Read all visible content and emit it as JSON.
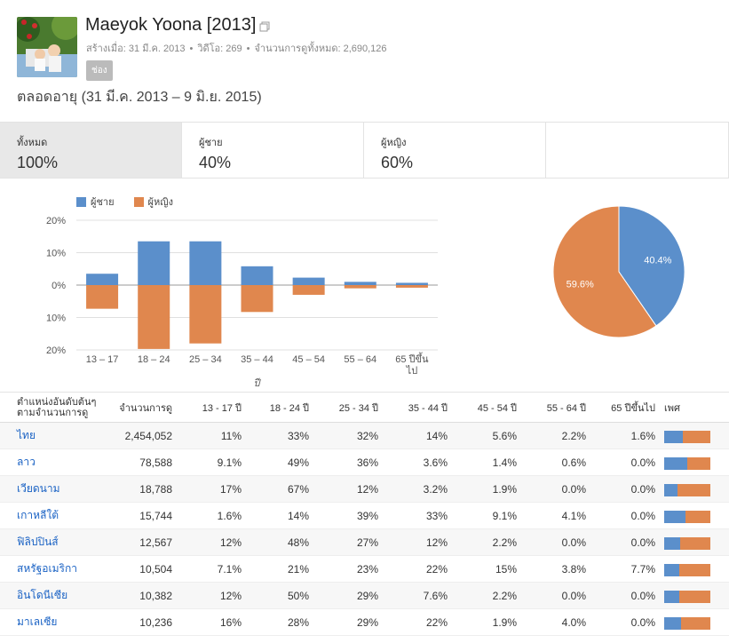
{
  "header": {
    "title": "Maeyok Yoona [2013]",
    "created": "สร้างเมื่อ: 31 มี.ค. 2013",
    "videos": "วิดีโอ: 269",
    "views_total": "จำนวนการดูทั้งหมด: 2,690,126",
    "channel_badge": "ช่อง",
    "date_range": "ตลอดอายุ (31 มี.ค. 2013 – 9 มิ.ย. 2015)"
  },
  "tabs": [
    {
      "label": "ทั้งหมด",
      "value": "100%"
    },
    {
      "label": "ผู้ชาย",
      "value": "40%"
    },
    {
      "label": "ผู้หญิง",
      "value": "60%"
    }
  ],
  "colors": {
    "male": "#5b8fcb",
    "female": "#e0874e"
  },
  "chart_data": [
    {
      "type": "bar",
      "categories": [
        "13 – 17",
        "18 – 24",
        "25 – 34",
        "35 – 44",
        "45 – 54",
        "55 – 64",
        "65 ปีขึ้นไป"
      ],
      "series": [
        {
          "name": "ผู้ชาย",
          "values": [
            3.5,
            13.5,
            13.5,
            5.8,
            2.3,
            1.0,
            0.7
          ]
        },
        {
          "name": "ผู้หญิง",
          "values": [
            7.3,
            19.7,
            18.0,
            8.3,
            3.0,
            1.0,
            0.8
          ]
        }
      ],
      "ytick_labels": [
        "20%",
        "10%",
        "0%",
        "10%",
        "20%"
      ],
      "xlabel": "ปี",
      "ylim": [
        -20,
        20
      ],
      "grid": true,
      "legend": "top-left"
    },
    {
      "type": "pie",
      "labels": [
        "ผู้ชาย",
        "ผู้หญิง"
      ],
      "values": [
        40.4,
        59.6
      ],
      "slice_labels": [
        "40.4%",
        "59.6%"
      ]
    }
  ],
  "table": {
    "headers": [
      "ตำแหน่งอันดับต้นๆ ตามจำนวนการดู",
      "จำนวนการดู",
      "13 - 17 ปี",
      "18 - 24 ปี",
      "25 - 34 ปี",
      "35 - 44 ปี",
      "45 - 54 ปี",
      "55 - 64 ปี",
      "65 ปีขึ้นไป",
      "เพศ"
    ],
    "header_line1": "ตำแหน่งอันดับต้นๆ",
    "header_line2": "ตามจำนวนการดู",
    "rows": [
      {
        "country": "ไทย",
        "views": "2,454,052",
        "a1": "11%",
        "a2": "33%",
        "a3": "32%",
        "a4": "14%",
        "a5": "5.6%",
        "a6": "2.2%",
        "a7": "1.6%",
        "male": 0.41
      },
      {
        "country": "ลาว",
        "views": "78,588",
        "a1": "9.1%",
        "a2": "49%",
        "a3": "36%",
        "a4": "3.6%",
        "a5": "1.4%",
        "a6": "0.6%",
        "a7": "0.0%",
        "male": 0.5
      },
      {
        "country": "เวียดนาม",
        "views": "18,788",
        "a1": "17%",
        "a2": "67%",
        "a3": "12%",
        "a4": "3.2%",
        "a5": "1.9%",
        "a6": "0.0%",
        "a7": "0.0%",
        "male": 0.29
      },
      {
        "country": "เกาหลีใต้",
        "views": "15,744",
        "a1": "1.6%",
        "a2": "14%",
        "a3": "39%",
        "a4": "33%",
        "a5": "9.1%",
        "a6": "4.1%",
        "a7": "0.0%",
        "male": 0.46
      },
      {
        "country": "ฟิลิปปินส์",
        "views": "12,567",
        "a1": "12%",
        "a2": "48%",
        "a3": "27%",
        "a4": "12%",
        "a5": "2.2%",
        "a6": "0.0%",
        "a7": "0.0%",
        "male": 0.35
      },
      {
        "country": "สหรัฐอเมริกา",
        "views": "10,504",
        "a1": "7.1%",
        "a2": "21%",
        "a3": "23%",
        "a4": "22%",
        "a5": "15%",
        "a6": "3.8%",
        "a7": "7.7%",
        "male": 0.33
      },
      {
        "country": "อินโดนีเซีย",
        "views": "10,382",
        "a1": "12%",
        "a2": "50%",
        "a3": "29%",
        "a4": "7.6%",
        "a5": "2.2%",
        "a6": "0.0%",
        "a7": "0.0%",
        "male": 0.33
      },
      {
        "country": "มาเลเซีย",
        "views": "10,236",
        "a1": "16%",
        "a2": "28%",
        "a3": "29%",
        "a4": "22%",
        "a5": "1.9%",
        "a6": "4.0%",
        "a7": "0.0%",
        "male": 0.37
      }
    ]
  }
}
